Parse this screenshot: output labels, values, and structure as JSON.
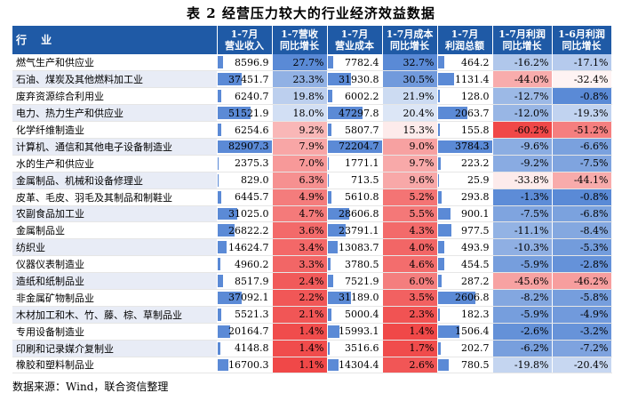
{
  "title": "表 2   经营压力较大的行业经济效益数据",
  "headers": {
    "industry": "行 业",
    "rev": [
      "1-7月",
      "营业收入"
    ],
    "rev_growth": [
      "1-7营收",
      "同比增长"
    ],
    "cost": [
      "1-7月",
      "营业成本"
    ],
    "cost_growth": [
      "1-7月成本",
      "同比增长"
    ],
    "profit": [
      "1-7月",
      "利润总额"
    ],
    "profit_growth_7": [
      "1-7月利润",
      "同比增长"
    ],
    "profit_growth_6": [
      "1-6月利润",
      "同比增长"
    ]
  },
  "rows": [
    {
      "name": "燃气生产和供应业",
      "rev": "8596.9",
      "rg": "27.7%",
      "cost": "7782.4",
      "cg": "32.7%",
      "profit": "464.2",
      "pg7": "-16.2%",
      "pg6": "-17.1%"
    },
    {
      "name": "石油、煤炭及其他燃料加工业",
      "rev": "37451.7",
      "rg": "23.3%",
      "cost": "31930.8",
      "cg": "30.5%",
      "profit": "1131.4",
      "pg7": "-44.0%",
      "pg6": "-32.4%"
    },
    {
      "name": "废弃资源综合利用业",
      "rev": "6240.7",
      "rg": "19.8%",
      "cost": "6002.2",
      "cg": "21.9%",
      "profit": "128.0",
      "pg7": "-12.7%",
      "pg6": "-0.8%"
    },
    {
      "name": "电力、热力生产和供应业",
      "rev": "51521.9",
      "rg": "18.0%",
      "cost": "47297.8",
      "cg": "20.4%",
      "profit": "2063.7",
      "pg7": "-12.0%",
      "pg6": "-19.3%"
    },
    {
      "name": "化学纤维制造业",
      "rev": "6254.6",
      "rg": "9.2%",
      "cost": "5807.7",
      "cg": "15.3%",
      "profit": "155.8",
      "pg7": "-60.2%",
      "pg6": "-51.2%"
    },
    {
      "name": "计算机、通信和其他电子设备制造业",
      "rev": "82907.3",
      "rg": "7.9%",
      "cost": "72204.7",
      "cg": "9.0%",
      "profit": "3784.3",
      "pg7": "-9.6%",
      "pg6": "-6.6%"
    },
    {
      "name": "水的生产和供应业",
      "rev": "2375.3",
      "rg": "7.0%",
      "cost": "1771.1",
      "cg": "9.7%",
      "profit": "223.2",
      "pg7": "-9.2%",
      "pg6": "-7.5%"
    },
    {
      "name": "金属制品、机械和设备修理业",
      "rev": "829.0",
      "rg": "6.3%",
      "cost": "713.5",
      "cg": "9.6%",
      "profit": "25.9",
      "pg7": "-33.8%",
      "pg6": "-44.1%"
    },
    {
      "name": "皮革、毛皮、羽毛及其制品和制鞋业",
      "rev": "6445.7",
      "rg": "4.9%",
      "cost": "5610.8",
      "cg": "5.2%",
      "profit": "293.8",
      "pg7": "-1.3%",
      "pg6": "-0.8%"
    },
    {
      "name": "农副食品加工业",
      "rev": "31025.0",
      "rg": "4.7%",
      "cost": "28606.8",
      "cg": "5.5%",
      "profit": "900.1",
      "pg7": "-7.5%",
      "pg6": "-6.8%"
    },
    {
      "name": "金属制品业",
      "rev": "26822.2",
      "rg": "3.6%",
      "cost": "23791.1",
      "cg": "4.3%",
      "profit": "977.5",
      "pg7": "-11.1%",
      "pg6": "-8.4%"
    },
    {
      "name": "纺织业",
      "rev": "14624.7",
      "rg": "3.4%",
      "cost": "13083.7",
      "cg": "4.0%",
      "profit": "493.9",
      "pg7": "-10.3%",
      "pg6": "-5.3%"
    },
    {
      "name": "仪器仪表制造业",
      "rev": "4960.2",
      "rg": "3.3%",
      "cost": "3780.5",
      "cg": "4.6%",
      "profit": "454.5",
      "pg7": "-5.9%",
      "pg6": "-2.8%"
    },
    {
      "name": "造纸和纸制品业",
      "rev": "8517.9",
      "rg": "2.4%",
      "cost": "7521.9",
      "cg": "6.0%",
      "profit": "287.2",
      "pg7": "-45.6%",
      "pg6": "-46.2%"
    },
    {
      "name": "非金属矿物制品业",
      "rev": "37092.1",
      "rg": "2.2%",
      "cost": "31189.0",
      "cg": "3.5%",
      "profit": "2606.8",
      "pg7": "-8.2%",
      "pg6": "-5.8%"
    },
    {
      "name": "木材加工和木、竹、藤、棕、草制品业",
      "rev": "5521.3",
      "rg": "2.1%",
      "cost": "5000.4",
      "cg": "2.3%",
      "profit": "182.3",
      "pg7": "-5.9%",
      "pg6": "-4.9%"
    },
    {
      "name": "专用设备制造业",
      "rev": "20164.7",
      "rg": "1.4%",
      "cost": "15993.1",
      "cg": "1.4%",
      "profit": "1506.4",
      "pg7": "-2.6%",
      "pg6": "-3.2%"
    },
    {
      "name": "印刷和记录媒介复制业",
      "rev": "4148.8",
      "rg": "1.4%",
      "cost": "3516.6",
      "cg": "1.7%",
      "profit": "202.7",
      "pg7": "-6.2%",
      "pg6": "-7.2%"
    },
    {
      "name": "橡胶和塑料制品业",
      "rev": "16700.3",
      "rg": "1.1%",
      "cost": "14304.4",
      "cg": "2.6%",
      "profit": "780.5",
      "pg7": "-19.8%",
      "pg6": "-20.4%"
    }
  ],
  "source": "数据来源：Wind，联合资信整理"
}
